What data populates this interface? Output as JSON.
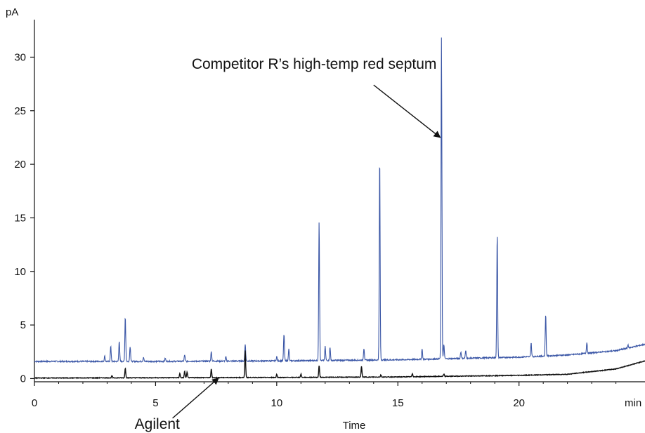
{
  "chart_data": {
    "type": "line",
    "xlabel": "Time",
    "x_unit_label": "min",
    "ylabel": "pA",
    "xlim": [
      0,
      25.2
    ],
    "ylim": [
      -0.3,
      33.5
    ],
    "xticks": [
      0,
      5,
      10,
      15,
      20
    ],
    "yticks": [
      0,
      5,
      10,
      15,
      20,
      25,
      30
    ],
    "grid": false,
    "series": [
      {
        "color": "#3a56a6",
        "baseline": [
          [
            0,
            1.6
          ],
          [
            5,
            1.6
          ],
          [
            10,
            1.65
          ],
          [
            15,
            1.75
          ],
          [
            18,
            1.9
          ],
          [
            20,
            2.0
          ],
          [
            22,
            2.2
          ],
          [
            24,
            2.6
          ],
          [
            25.2,
            3.2
          ]
        ],
        "peaks": [
          [
            2.9,
            0.5
          ],
          [
            3.15,
            1.4
          ],
          [
            3.5,
            1.9
          ],
          [
            3.75,
            4.2
          ],
          [
            3.95,
            1.4
          ],
          [
            4.5,
            0.4
          ],
          [
            5.4,
            0.3
          ],
          [
            6.2,
            0.6
          ],
          [
            7.3,
            0.9
          ],
          [
            7.9,
            0.4
          ],
          [
            8.7,
            1.6
          ],
          [
            10.0,
            0.4
          ],
          [
            10.3,
            2.5
          ],
          [
            10.5,
            1.1
          ],
          [
            11.75,
            13.0
          ],
          [
            12.0,
            1.3
          ],
          [
            12.2,
            1.2
          ],
          [
            13.6,
            1.1
          ],
          [
            14.25,
            18.9
          ],
          [
            16.0,
            1.0
          ],
          [
            16.8,
            30.0
          ],
          [
            16.9,
            1.3
          ],
          [
            17.6,
            0.6
          ],
          [
            17.8,
            0.7
          ],
          [
            19.1,
            11.5
          ],
          [
            20.5,
            1.3
          ],
          [
            21.1,
            3.9
          ],
          [
            22.8,
            1.0
          ],
          [
            24.5,
            0.3
          ]
        ]
      },
      {
        "color": "#111111",
        "baseline": [
          [
            0,
            0.05
          ],
          [
            10,
            0.1
          ],
          [
            15,
            0.15
          ],
          [
            20,
            0.3
          ],
          [
            22,
            0.4
          ],
          [
            24,
            0.9
          ],
          [
            25.2,
            1.65
          ]
        ],
        "peaks": [
          [
            3.2,
            0.2
          ],
          [
            3.75,
            0.9
          ],
          [
            6.0,
            0.4
          ],
          [
            6.2,
            0.6
          ],
          [
            6.3,
            0.5
          ],
          [
            7.3,
            0.8
          ],
          [
            8.7,
            2.5
          ],
          [
            10.0,
            0.3
          ],
          [
            11.0,
            0.3
          ],
          [
            11.75,
            1.1
          ],
          [
            13.5,
            1.0
          ],
          [
            14.3,
            0.2
          ],
          [
            15.6,
            0.3
          ],
          [
            16.9,
            0.2
          ]
        ]
      }
    ],
    "annotations": [
      {
        "text": "Competitor R’s high-temp red septum",
        "text_x": 16.6,
        "text_y": 28.9,
        "arrow_from": [
          14.0,
          27.4
        ],
        "arrow_to": [
          16.75,
          22.5
        ]
      },
      {
        "text": "Agilent",
        "text_x": 6.0,
        "text_y": -4.7,
        "arrow_from": [
          5.7,
          -3.7
        ],
        "arrow_to": [
          7.6,
          0.05
        ]
      }
    ]
  }
}
